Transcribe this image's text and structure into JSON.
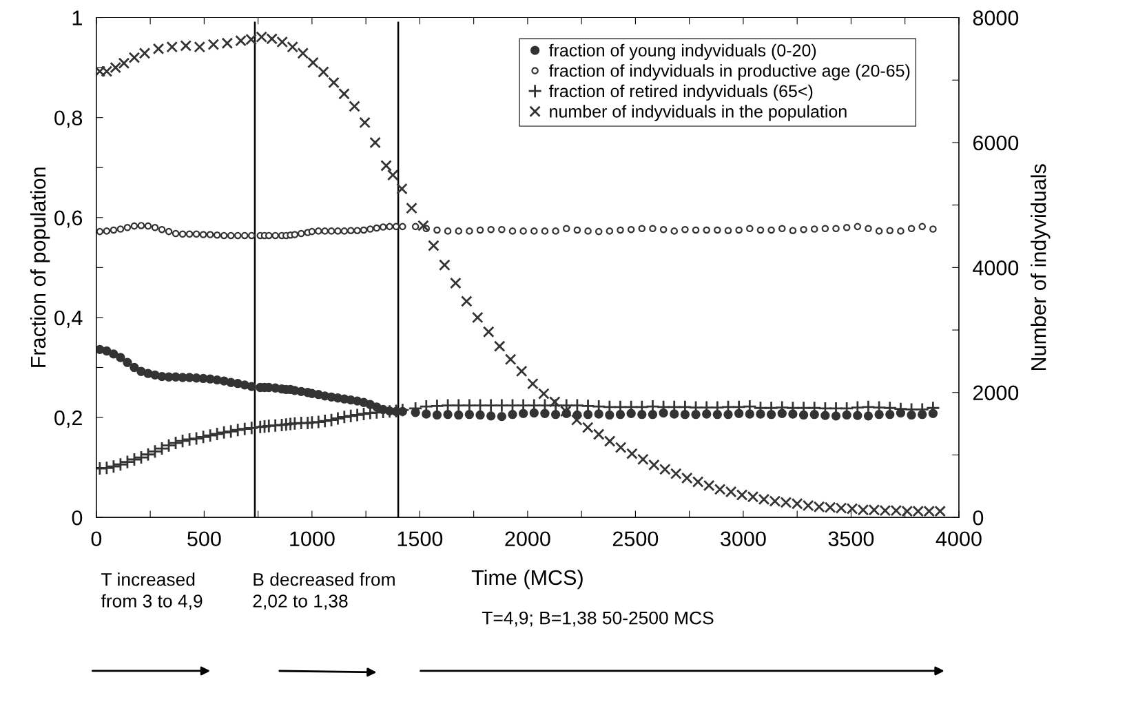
{
  "chart_data": {
    "type": "scatter",
    "xlabel": "Time (MCS)",
    "ylabel": "Fraction of population",
    "y2label": "Number of indyviduals",
    "xlim": [
      0,
      4000
    ],
    "xticks": [
      0,
      {
        "value": 250,
        "label": null
      },
      500,
      {
        "value": 750,
        "label": null
      },
      1000,
      {
        "value": 1250,
        "label": null
      },
      1500,
      {
        "value": 1750,
        "label": null
      },
      2000,
      {
        "value": 2250,
        "label": null
      },
      2500,
      {
        "value": 2750,
        "label": null
      },
      3000,
      {
        "value": 3250,
        "label": null
      },
      3500,
      {
        "value": 3750,
        "label": null
      },
      4000
    ],
    "ylim": [
      0,
      1
    ],
    "yticks": [
      0,
      {
        "value": 0.1,
        "label": null
      },
      {
        "value": 0.2,
        "label": "0,2"
      },
      {
        "value": 0.3,
        "label": null
      },
      {
        "value": 0.4,
        "label": "0,4"
      },
      {
        "value": 0.5,
        "label": null
      },
      {
        "value": 0.6,
        "label": "0,6"
      },
      {
        "value": 0.7,
        "label": null
      },
      {
        "value": 0.8,
        "label": "0,8"
      },
      {
        "value": 0.9,
        "label": null
      },
      1
    ],
    "y2lim": [
      0,
      8000
    ],
    "y2ticks": [
      0,
      {
        "value": 1000,
        "label": null
      },
      2000,
      {
        "value": 3000,
        "label": null
      },
      4000,
      {
        "value": 5000,
        "label": null
      },
      6000,
      {
        "value": 7000,
        "label": null
      },
      8000
    ],
    "grid": false,
    "legend": "top right",
    "ref_lines": [
      {
        "axis": "x",
        "value": 735,
        "color": "#000000"
      },
      {
        "axis": "x",
        "value": 1400,
        "color": "#000000"
      }
    ],
    "annotations": [
      "T increased\nfrom 3 to 4,9",
      "B decreased from\n2,02 to 1,38",
      "T=4,9; B=1,38 50-2500 MCS"
    ],
    "series": [
      {
        "name": "fraction of young indyviduals (0-20)",
        "color": "#333333",
        "marker": "circle",
        "x": [
          16,
          48,
          80,
          112,
          144,
          176,
          208,
          240,
          272,
          304,
          336,
          368,
          400,
          432,
          464,
          496,
          528,
          560,
          592,
          624,
          656,
          688,
          720,
          760,
          780,
          800,
          830,
          860,
          880,
          900,
          920,
          950,
          980,
          1000,
          1030,
          1060,
          1090,
          1120,
          1150,
          1180,
          1210,
          1240,
          1270,
          1300,
          1330,
          1360,
          1390,
          1420,
          1480,
          1530,
          1580,
          1630,
          1680,
          1730,
          1780,
          1830,
          1880,
          1930,
          1980,
          2030,
          2080,
          2130,
          2180,
          2230,
          2280,
          2330,
          2380,
          2430,
          2480,
          2530,
          2580,
          2630,
          2680,
          2730,
          2780,
          2830,
          2880,
          2930,
          2980,
          3030,
          3080,
          3130,
          3180,
          3230,
          3280,
          3330,
          3380,
          3430,
          3480,
          3530,
          3580,
          3630,
          3680,
          3730,
          3780,
          3830,
          3880
        ],
        "values": [
          0.336,
          0.333,
          0.327,
          0.32,
          0.31,
          0.3,
          0.292,
          0.288,
          0.285,
          0.282,
          0.281,
          0.281,
          0.28,
          0.28,
          0.279,
          0.278,
          0.277,
          0.275,
          0.273,
          0.27,
          0.268,
          0.265,
          0.262,
          0.26,
          0.26,
          0.26,
          0.259,
          0.257,
          0.256,
          0.256,
          0.254,
          0.252,
          0.25,
          0.248,
          0.246,
          0.243,
          0.241,
          0.239,
          0.237,
          0.235,
          0.233,
          0.23,
          0.226,
          0.221,
          0.216,
          0.213,
          0.212,
          0.212,
          0.21,
          0.207,
          0.205,
          0.206,
          0.205,
          0.206,
          0.205,
          0.203,
          0.202,
          0.206,
          0.208,
          0.209,
          0.208,
          0.206,
          0.208,
          0.205,
          0.206,
          0.207,
          0.205,
          0.206,
          0.208,
          0.206,
          0.206,
          0.209,
          0.207,
          0.206,
          0.206,
          0.207,
          0.206,
          0.206,
          0.208,
          0.207,
          0.207,
          0.206,
          0.208,
          0.207,
          0.205,
          0.206,
          0.204,
          0.203,
          0.205,
          0.204,
          0.203,
          0.206,
          0.206,
          0.209,
          0.205,
          0.206,
          0.208
        ]
      },
      {
        "name": "fraction of indyviduals in productive age (20-65)",
        "color": "#333333",
        "marker": "circle-open",
        "x": [
          16,
          48,
          80,
          112,
          144,
          176,
          208,
          240,
          272,
          304,
          336,
          368,
          400,
          432,
          464,
          496,
          528,
          560,
          592,
          624,
          656,
          688,
          720,
          760,
          780,
          800,
          830,
          860,
          880,
          900,
          920,
          950,
          980,
          1000,
          1030,
          1060,
          1090,
          1120,
          1150,
          1180,
          1210,
          1240,
          1270,
          1300,
          1330,
          1360,
          1390,
          1420,
          1480,
          1530,
          1580,
          1630,
          1680,
          1730,
          1780,
          1830,
          1880,
          1930,
          1980,
          2030,
          2080,
          2130,
          2180,
          2230,
          2280,
          2330,
          2380,
          2430,
          2480,
          2530,
          2580,
          2630,
          2680,
          2730,
          2780,
          2830,
          2880,
          2930,
          2980,
          3030,
          3080,
          3130,
          3180,
          3230,
          3280,
          3330,
          3380,
          3430,
          3480,
          3530,
          3580,
          3630,
          3680,
          3730,
          3780,
          3830,
          3880
        ],
        "values": [
          0.572,
          0.573,
          0.575,
          0.577,
          0.58,
          0.583,
          0.584,
          0.583,
          0.58,
          0.576,
          0.572,
          0.568,
          0.567,
          0.567,
          0.567,
          0.566,
          0.566,
          0.565,
          0.564,
          0.564,
          0.564,
          0.564,
          0.564,
          0.564,
          0.564,
          0.564,
          0.564,
          0.564,
          0.564,
          0.565,
          0.566,
          0.568,
          0.57,
          0.572,
          0.573,
          0.573,
          0.573,
          0.573,
          0.573,
          0.574,
          0.574,
          0.575,
          0.577,
          0.579,
          0.581,
          0.582,
          0.582,
          0.582,
          0.582,
          0.578,
          0.575,
          0.573,
          0.573,
          0.573,
          0.575,
          0.576,
          0.576,
          0.573,
          0.573,
          0.573,
          0.573,
          0.573,
          0.578,
          0.575,
          0.573,
          0.572,
          0.573,
          0.575,
          0.576,
          0.578,
          0.578,
          0.576,
          0.573,
          0.576,
          0.575,
          0.575,
          0.575,
          0.574,
          0.575,
          0.578,
          0.575,
          0.575,
          0.578,
          0.574,
          0.576,
          0.577,
          0.578,
          0.578,
          0.58,
          0.582,
          0.578,
          0.573,
          0.574,
          0.573,
          0.578,
          0.582,
          0.577
        ]
      },
      {
        "name": "fraction of retired indyviduals (65<)",
        "color": "#333333",
        "marker": "plus",
        "x": [
          16,
          48,
          80,
          112,
          144,
          176,
          208,
          240,
          272,
          304,
          336,
          368,
          400,
          432,
          464,
          496,
          528,
          560,
          592,
          624,
          656,
          688,
          720,
          760,
          780,
          800,
          830,
          860,
          880,
          900,
          920,
          950,
          980,
          1000,
          1030,
          1060,
          1090,
          1120,
          1150,
          1180,
          1210,
          1240,
          1270,
          1300,
          1330,
          1360,
          1390,
          1420,
          1480,
          1530,
          1580,
          1630,
          1680,
          1730,
          1780,
          1830,
          1880,
          1930,
          1980,
          2030,
          2080,
          2130,
          2180,
          2230,
          2280,
          2330,
          2380,
          2430,
          2480,
          2530,
          2580,
          2630,
          2680,
          2730,
          2780,
          2830,
          2880,
          2930,
          2980,
          3030,
          3080,
          3130,
          3180,
          3230,
          3280,
          3330,
          3380,
          3430,
          3480,
          3530,
          3580,
          3630,
          3680,
          3730,
          3780,
          3830,
          3880
        ],
        "values": [
          0.098,
          0.099,
          0.102,
          0.106,
          0.111,
          0.116,
          0.12,
          0.126,
          0.132,
          0.138,
          0.144,
          0.149,
          0.153,
          0.156,
          0.158,
          0.161,
          0.164,
          0.167,
          0.17,
          0.172,
          0.175,
          0.177,
          0.179,
          0.181,
          0.182,
          0.183,
          0.184,
          0.185,
          0.186,
          0.187,
          0.188,
          0.189,
          0.189,
          0.19,
          0.191,
          0.193,
          0.195,
          0.198,
          0.201,
          0.203,
          0.205,
          0.207,
          0.209,
          0.21,
          0.211,
          0.212,
          0.213,
          0.215,
          0.218,
          0.222,
          0.223,
          0.224,
          0.224,
          0.224,
          0.224,
          0.224,
          0.224,
          0.224,
          0.224,
          0.224,
          0.224,
          0.224,
          0.224,
          0.224,
          0.223,
          0.222,
          0.221,
          0.221,
          0.221,
          0.221,
          0.222,
          0.221,
          0.221,
          0.221,
          0.22,
          0.22,
          0.22,
          0.221,
          0.221,
          0.222,
          0.219,
          0.219,
          0.22,
          0.219,
          0.219,
          0.219,
          0.218,
          0.218,
          0.218,
          0.22,
          0.221,
          0.22,
          0.219,
          0.217,
          0.216,
          0.216,
          0.219
        ]
      },
      {
        "name": "number of indyviduals in the population",
        "color": "#333333",
        "marker": "cross",
        "axis": "y2",
        "x": [
          16,
          48,
          89,
          128,
          176,
          224,
          288,
          351,
          415,
          479,
          543,
          607,
          670,
          718,
          766,
          814,
          862,
          910,
          958,
          1005,
          1053,
          1101,
          1149,
          1197,
          1245,
          1293,
          1344,
          1375,
          1417,
          1462,
          1516,
          1564,
          1615,
          1666,
          1717,
          1768,
          1819,
          1870,
          1921,
          1972,
          2024,
          2075,
          2126,
          2177,
          2228,
          2279,
          2330,
          2381,
          2432,
          2484,
          2535,
          2586,
          2637,
          2688,
          2739,
          2790,
          2841,
          2892,
          2943,
          2994,
          3045,
          3096,
          3147,
          3198,
          3250,
          3301,
          3352,
          3403,
          3454,
          3505,
          3556,
          3607,
          3658,
          3709,
          3760,
          3811,
          3862,
          3913
        ],
        "values": [
          7140,
          7140,
          7200,
          7270,
          7360,
          7430,
          7500,
          7530,
          7550,
          7530,
          7570,
          7590,
          7630,
          7650,
          7690,
          7660,
          7610,
          7530,
          7430,
          7280,
          7130,
          6960,
          6780,
          6580,
          6320,
          6000,
          5630,
          5480,
          5260,
          4950,
          4670,
          4350,
          4040,
          3750,
          3460,
          3200,
          2970,
          2740,
          2530,
          2340,
          2140,
          1980,
          1850,
          1700,
          1560,
          1440,
          1330,
          1220,
          1120,
          1020,
          930,
          840,
          770,
          700,
          630,
          570,
          510,
          450,
          410,
          360,
          330,
          290,
          260,
          240,
          220,
          190,
          170,
          160,
          150,
          140,
          120,
          120,
          110,
          110,
          100,
          100,
          100,
          100
        ]
      }
    ]
  }
}
